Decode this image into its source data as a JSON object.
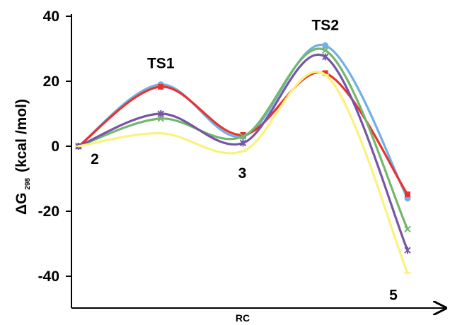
{
  "chart_data": {
    "type": "line",
    "title": "",
    "xlabel": "RC",
    "ylabel": {
      "main": "ΔG",
      "subscript": "298",
      "unit": "(kcal /mol)"
    },
    "ylim": [
      -50,
      40
    ],
    "yticks": [
      40,
      20,
      0,
      -20,
      -40
    ],
    "x": [
      0,
      1,
      2,
      3,
      4
    ],
    "grid": false,
    "legend": "none",
    "series": [
      {
        "color": "#6fb0e6",
        "marker": "circle",
        "values": [
          0,
          19,
          3,
          31,
          -16
        ]
      },
      {
        "color": "#e8322f",
        "marker": "square",
        "values": [
          0,
          18.3,
          3.5,
          22.5,
          -14.8
        ]
      },
      {
        "color": "#72b86b",
        "marker": "x",
        "values": [
          0,
          8.5,
          3,
          29.5,
          -25.5
        ]
      },
      {
        "color": "#7755a6",
        "marker": "star",
        "values": [
          0,
          10,
          1,
          27.5,
          -32
        ]
      },
      {
        "color": "#fbf27c",
        "marker": "line",
        "values": [
          0,
          4,
          -1.5,
          22,
          -39
        ]
      }
    ],
    "annotations": [
      {
        "text": "TS1",
        "x": 1,
        "y": 19
      },
      {
        "text": "TS2",
        "x": 3,
        "y": 31
      },
      {
        "text": "2",
        "x": 0,
        "y": 0
      },
      {
        "text": "3",
        "x": 2,
        "y": -1.5
      },
      {
        "text": "5",
        "x": 4,
        "y": -39
      }
    ]
  }
}
